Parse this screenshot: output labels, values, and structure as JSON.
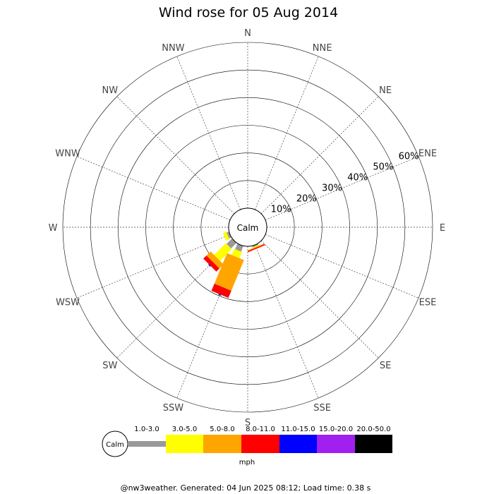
{
  "chart_data": {
    "type": "wind-rose",
    "title": "Wind rose for 05 Aug 2014",
    "directions": [
      "N",
      "NNE",
      "NE",
      "ENE",
      "E",
      "ESE",
      "SE",
      "SSE",
      "S",
      "SSW",
      "SW",
      "WSW",
      "W",
      "WNW",
      "NW",
      "NNW"
    ],
    "radial_ticks": [
      10,
      20,
      30,
      40,
      50,
      60
    ],
    "radial_tick_labels": [
      "10%",
      "20%",
      "30%",
      "40%",
      "50%",
      "60%"
    ],
    "rmax": 60,
    "calm_label": "Calm",
    "unit_label": "mph",
    "speed_bins": [
      {
        "label": "1.0-3.0",
        "color": "#999999"
      },
      {
        "label": "3.0-5.0",
        "color": "#ffff00"
      },
      {
        "label": "5.0-8.0",
        "color": "#ffa500"
      },
      {
        "label": "8.0-11.0",
        "color": "#ff0000"
      },
      {
        "label": "11.0-15.0",
        "color": "#0000ff"
      },
      {
        "label": "15.0-20.0",
        "color": "#a020f0"
      },
      {
        "label": "20.0-50.0",
        "color": "#000000"
      }
    ],
    "series": [
      {
        "direction": "SSE",
        "values": [
          0.5,
          0.3,
          0.3,
          0.4,
          0,
          0,
          0
        ]
      },
      {
        "direction": "SSW",
        "values": [
          2.2,
          2.4,
          12.0,
          2.8,
          0.3,
          0,
          0
        ]
      },
      {
        "direction": "SW",
        "values": [
          2.8,
          6.0,
          2.1,
          1.6,
          0.3,
          0,
          0
        ]
      },
      {
        "direction": "WSW",
        "values": [
          0.9,
          1.3,
          0,
          0,
          0,
          0,
          0
        ]
      }
    ]
  },
  "footer": "@nw3weather. Generated: 04 Jun 2025 08:12; Load time: 0.38 s"
}
